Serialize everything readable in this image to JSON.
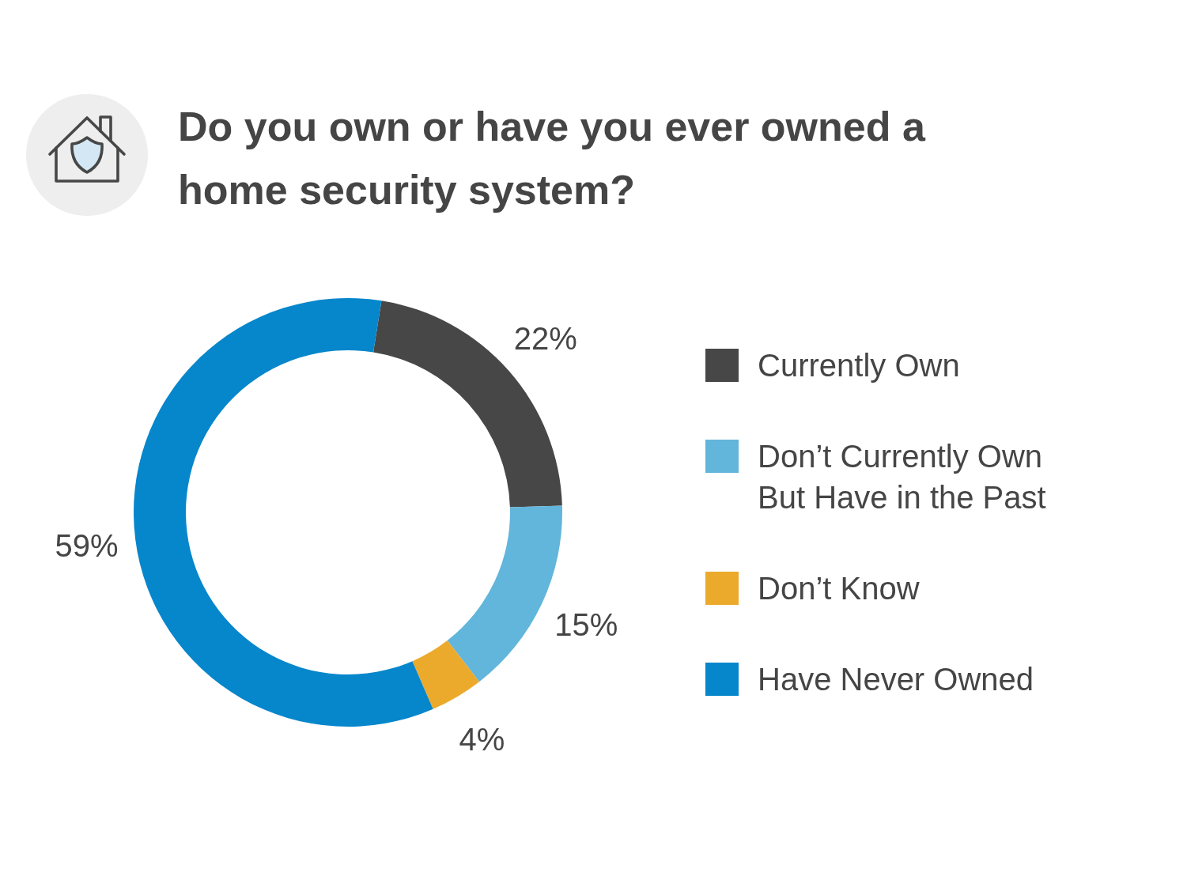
{
  "chart_data": {
    "type": "donut",
    "title": "Do you own or have you ever owned a home security system?",
    "categories": [
      "Currently Own",
      "Don’t Currently Own But Have in the Past",
      "Don’t Know",
      "Have Never Owned"
    ],
    "values": [
      22,
      15,
      4,
      59
    ],
    "colors": [
      "#474747",
      "#62b5db",
      "#ecaa2c",
      "#0686cb"
    ],
    "value_labels": [
      "22%",
      "15%",
      "4%",
      "59%"
    ],
    "legend": "right"
  }
}
